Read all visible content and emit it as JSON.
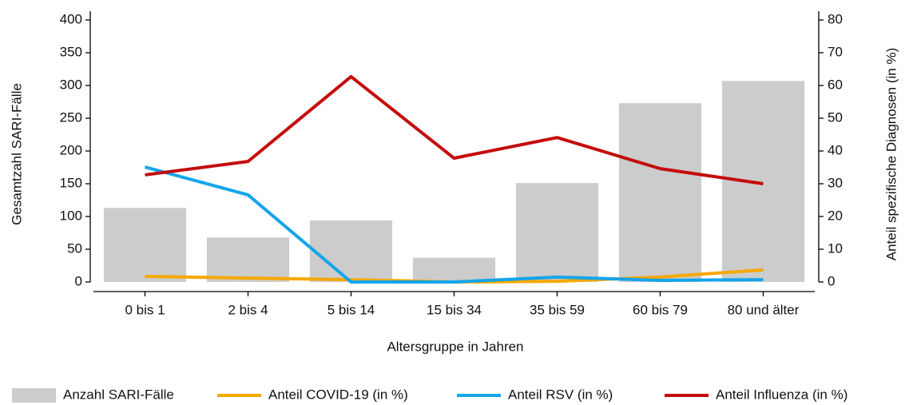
{
  "chart_data": {
    "type": "combo",
    "x_label": "Altersgruppe in Jahren",
    "y_label": "Gesamtzahl SARI-Fälle",
    "y2_label": "Anteil spezifische Diagnosen (in %)",
    "categories": [
      "0 bis 1",
      "2 bis 4",
      "5 bis 14",
      "15 bis 34",
      "35 bis 59",
      "60 bis 79",
      "80 und älter"
    ],
    "series": [
      {
        "name": "Anzahl SARI-Fälle",
        "kind": "bar",
        "color": "#cccccc",
        "values": [
          113,
          68,
          94,
          37,
          151,
          273,
          307
        ]
      },
      {
        "name": "Anteil COVID-19 (in %)",
        "kind": "line",
        "axis": "y2",
        "color": "#f5a800",
        "values": [
          1.7,
          1.2,
          0.7,
          0,
          0.2,
          1.5,
          3.7
        ]
      },
      {
        "name": "Anteil RSV (in %)",
        "kind": "line",
        "axis": "y2",
        "color": "#14a5ec",
        "values": [
          35.1,
          26.6,
          0,
          0,
          1.5,
          0.5,
          0.7
        ]
      },
      {
        "name": "Anteil Influenza (in %)",
        "kind": "line",
        "axis": "y2",
        "color": "#c40c0c",
        "values": [
          32.7,
          36.8,
          62.7,
          37.8,
          44.1,
          34.6,
          30
        ]
      }
    ],
    "ylim": [
      0,
      400
    ],
    "yticks": [
      0,
      50,
      100,
      150,
      200,
      250,
      300,
      350,
      400
    ],
    "y2lim": [
      0,
      80
    ],
    "y2ticks": [
      0,
      10,
      20,
      30,
      40,
      50,
      60,
      70,
      80
    ]
  }
}
